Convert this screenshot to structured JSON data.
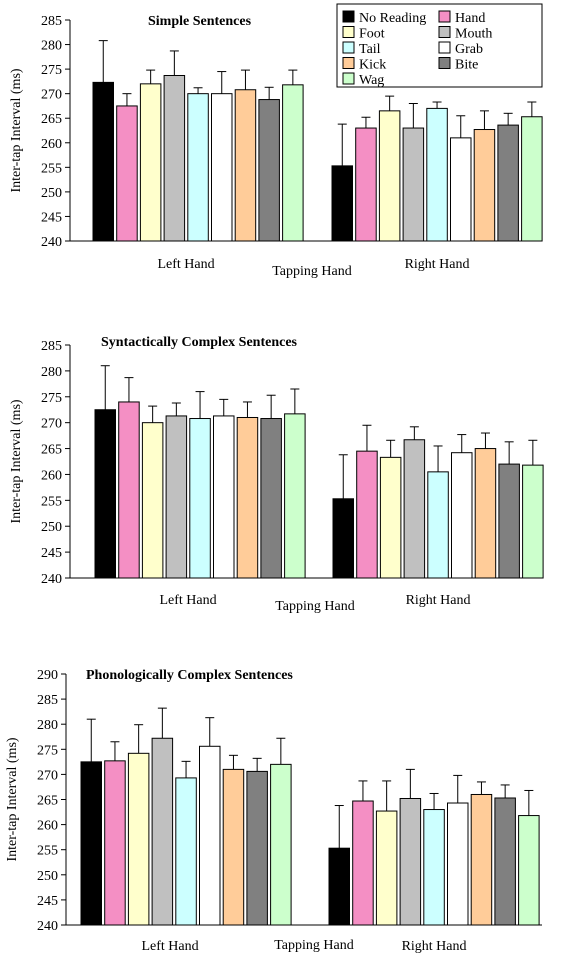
{
  "xlabel": "Tapping Hand",
  "ylabel": "Inter-tap Interval (ms)",
  "groups": [
    "Left Hand",
    "Right Hand"
  ],
  "series_names": [
    "No Reading",
    "Hand",
    "Foot",
    "Mouth",
    "Tail",
    "Grab",
    "Kick",
    "Bite",
    "Wag"
  ],
  "legend_rows": [
    [
      "No Reading",
      "Hand"
    ],
    [
      "Foot",
      "Mouth"
    ],
    [
      "Tail",
      "Grab"
    ],
    [
      "Kick",
      "Bite"
    ],
    [
      "Wag"
    ]
  ],
  "colors": {
    "No Reading": "#000000",
    "Hand": "#f48fc4",
    "Foot": "#ffffcc",
    "Mouth": "#c0c0c0",
    "Tail": "#ccffff",
    "Grab": "#ffffff",
    "Kick": "#ffcc99",
    "Bite": "#808080",
    "Wag": "#ccffcc"
  },
  "chart_data": [
    {
      "type": "bar",
      "title": "Simple Sentences",
      "ylim": [
        240,
        285
      ],
      "yticks": [
        240,
        245,
        250,
        255,
        260,
        265,
        270,
        275,
        280,
        285
      ],
      "series": [
        {
          "name": "No Reading",
          "values": [
            272.3,
            255.3
          ],
          "errors": [
            8.5,
            8.5
          ]
        },
        {
          "name": "Hand",
          "values": [
            267.5,
            263.0
          ],
          "errors": [
            2.5,
            2.2
          ]
        },
        {
          "name": "Foot",
          "values": [
            272.0,
            266.5
          ],
          "errors": [
            2.8,
            3.0
          ]
        },
        {
          "name": "Mouth",
          "values": [
            273.7,
            263.0
          ],
          "errors": [
            5.0,
            5.0
          ]
        },
        {
          "name": "Tail",
          "values": [
            270.0,
            267.0
          ],
          "errors": [
            1.2,
            1.3
          ]
        },
        {
          "name": "Grab",
          "values": [
            270.0,
            261.0
          ],
          "errors": [
            4.5,
            4.5
          ]
        },
        {
          "name": "Kick",
          "values": [
            270.8,
            262.7
          ],
          "errors": [
            4.0,
            3.8
          ]
        },
        {
          "name": "Bite",
          "values": [
            268.8,
            263.6
          ],
          "errors": [
            2.5,
            2.4
          ]
        },
        {
          "name": "Wag",
          "values": [
            271.8,
            265.3
          ],
          "errors": [
            3.0,
            3.0
          ]
        }
      ],
      "legend": "top-right"
    },
    {
      "type": "bar",
      "title": "Syntactically Complex Sentences",
      "ylim": [
        240,
        285
      ],
      "yticks": [
        240,
        245,
        250,
        255,
        260,
        265,
        270,
        275,
        280,
        285
      ],
      "series": [
        {
          "name": "No Reading",
          "values": [
            272.5,
            255.3
          ],
          "errors": [
            8.5,
            8.5
          ]
        },
        {
          "name": "Hand",
          "values": [
            274.0,
            264.5
          ],
          "errors": [
            4.7,
            5.0
          ]
        },
        {
          "name": "Foot",
          "values": [
            270.0,
            263.3
          ],
          "errors": [
            3.2,
            3.3
          ]
        },
        {
          "name": "Mouth",
          "values": [
            271.3,
            266.7
          ],
          "errors": [
            2.5,
            2.5
          ]
        },
        {
          "name": "Tail",
          "values": [
            270.8,
            260.5
          ],
          "errors": [
            5.2,
            5.0
          ]
        },
        {
          "name": "Grab",
          "values": [
            271.3,
            264.2
          ],
          "errors": [
            3.2,
            3.5
          ]
        },
        {
          "name": "Kick",
          "values": [
            271.0,
            265.0
          ],
          "errors": [
            3.0,
            3.0
          ]
        },
        {
          "name": "Bite",
          "values": [
            270.8,
            262.0
          ],
          "errors": [
            4.5,
            4.3
          ]
        },
        {
          "name": "Wag",
          "values": [
            271.7,
            261.8
          ],
          "errors": [
            4.8,
            4.8
          ]
        }
      ]
    },
    {
      "type": "bar",
      "title": "Phonologically Complex Sentences",
      "ylim": [
        240,
        290
      ],
      "yticks": [
        240,
        245,
        250,
        255,
        260,
        265,
        270,
        275,
        280,
        285,
        290
      ],
      "series": [
        {
          "name": "No Reading",
          "values": [
            272.5,
            255.3
          ],
          "errors": [
            8.5,
            8.5
          ]
        },
        {
          "name": "Hand",
          "values": [
            272.7,
            264.7
          ],
          "errors": [
            3.8,
            4.0
          ]
        },
        {
          "name": "Foot",
          "values": [
            274.2,
            262.7
          ],
          "errors": [
            5.7,
            6.0
          ]
        },
        {
          "name": "Mouth",
          "values": [
            277.2,
            265.2
          ],
          "errors": [
            6.0,
            5.8
          ]
        },
        {
          "name": "Tail",
          "values": [
            269.3,
            263.0
          ],
          "errors": [
            3.3,
            3.2
          ]
        },
        {
          "name": "Grab",
          "values": [
            275.6,
            264.3
          ],
          "errors": [
            5.7,
            5.5
          ]
        },
        {
          "name": "Kick",
          "values": [
            271.0,
            266.0
          ],
          "errors": [
            2.8,
            2.5
          ]
        },
        {
          "name": "Bite",
          "values": [
            270.6,
            265.3
          ],
          "errors": [
            2.6,
            2.6
          ]
        },
        {
          "name": "Wag",
          "values": [
            272.0,
            261.8
          ],
          "errors": [
            5.2,
            5.0
          ]
        }
      ]
    }
  ]
}
